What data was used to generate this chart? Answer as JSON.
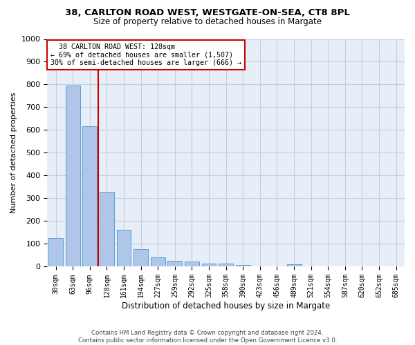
{
  "title_line1": "38, CARLTON ROAD WEST, WESTGATE-ON-SEA, CT8 8PL",
  "title_line2": "Size of property relative to detached houses in Margate",
  "xlabel": "Distribution of detached houses by size in Margate",
  "ylabel": "Number of detached properties",
  "footnote": "Contains HM Land Registry data © Crown copyright and database right 2024.\nContains public sector information licensed under the Open Government Licence v3.0.",
  "bar_labels": [
    "30sqm",
    "63sqm",
    "96sqm",
    "128sqm",
    "161sqm",
    "194sqm",
    "227sqm",
    "259sqm",
    "292sqm",
    "325sqm",
    "358sqm",
    "390sqm",
    "423sqm",
    "456sqm",
    "489sqm",
    "521sqm",
    "554sqm",
    "587sqm",
    "620sqm",
    "652sqm",
    "685sqm"
  ],
  "bar_values": [
    125,
    795,
    618,
    328,
    162,
    78,
    40,
    27,
    22,
    15,
    15,
    8,
    0,
    0,
    10,
    0,
    0,
    0,
    0,
    0,
    0
  ],
  "bar_color": "#aec6e8",
  "bar_edge_color": "#5a9fd4",
  "ylim": [
    0,
    1000
  ],
  "yticks": [
    0,
    100,
    200,
    300,
    400,
    500,
    600,
    700,
    800,
    900,
    1000
  ],
  "vline_color": "#cc0000",
  "annotation_line1": "  38 CARLTON ROAD WEST: 128sqm",
  "annotation_line2": "← 69% of detached houses are smaller (1,507)",
  "annotation_line3": "30% of semi-detached houses are larger (666) →",
  "background_color": "#ffffff",
  "ax_background_color": "#e8eef7",
  "grid_color": "#c0cfe0"
}
